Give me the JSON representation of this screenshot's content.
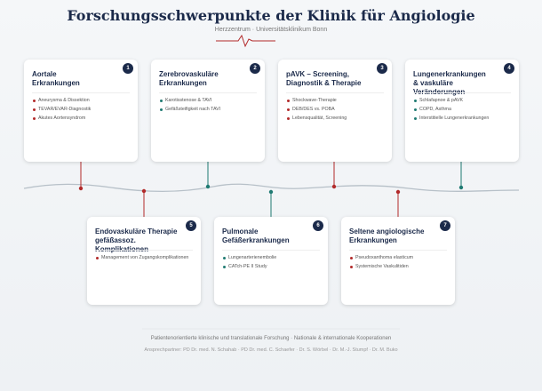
{
  "header": {
    "title": "Forschungsschwerpunkte der Klinik für Angiologie",
    "subtitle": "Herzzentrum · Universitätsklinikum Bonn"
  },
  "cards": [
    {
      "number": "1",
      "title_lines": [
        "Aortale",
        "Erkrankungen"
      ],
      "accent": "#b22a2a",
      "items": [
        "Aneurysma & Dissektion",
        "TEVAR/EVAR-Diagnostik",
        "Akutes Aortensyndrom"
      ]
    },
    {
      "number": "2",
      "title_lines": [
        "Zerebrovaskuläre",
        "Erkrankungen"
      ],
      "accent": "#1f7a72",
      "items": [
        "Karotisstenose & TAVI",
        "Gefäßsteifigkeit nach TAVI"
      ]
    },
    {
      "number": "3",
      "title_lines": [
        "pAVK – Screening,",
        "Diagnostik & Therapie"
      ],
      "accent": "#b22a2a",
      "items": [
        "Shockwave-Therapie",
        "DEB/DES vs. POBA",
        "Lebensqualität, Screening"
      ]
    },
    {
      "number": "4",
      "title_lines": [
        "Lungenerkrankungen",
        "& vaskuläre Veränderungen"
      ],
      "accent": "#1f7a72",
      "items": [
        "Schlafapnoe & pAVK",
        "COPD, Asthma",
        "Interstitielle Lungenerkrankungen"
      ]
    },
    {
      "number": "5",
      "title_lines": [
        "Endovaskuläre Therapie",
        "gefäßassoz. Komplikationen"
      ],
      "accent": "#b22a2a",
      "items": [
        "Management von Zugangskomplikationen"
      ]
    },
    {
      "number": "6",
      "title_lines": [
        "Pulmonale",
        "Gefäßerkrankungen"
      ],
      "accent": "#1f7a72",
      "items": [
        "Lungenarterienembolie",
        "CATch-PE II Study"
      ]
    },
    {
      "number": "7",
      "title_lines": [
        "Seltene angiologische",
        "Erkrankungen"
      ],
      "accent": "#b22a2a",
      "items": [
        "Pseudoxanthoma elasticum",
        "Systemische Vaskulitiden"
      ]
    }
  ],
  "footer": {
    "line1": "Patientenorientierte klinische und translationale Forschung · Nationale & internationale Kooperationen",
    "line2": "Ansprechpartner: PD Dr. med. N. Schahab · PD Dr. med. C. Schaefer · Dr. S. Wörbel · Dr. M.-J. Stumpf · Dr. M. Buko"
  }
}
